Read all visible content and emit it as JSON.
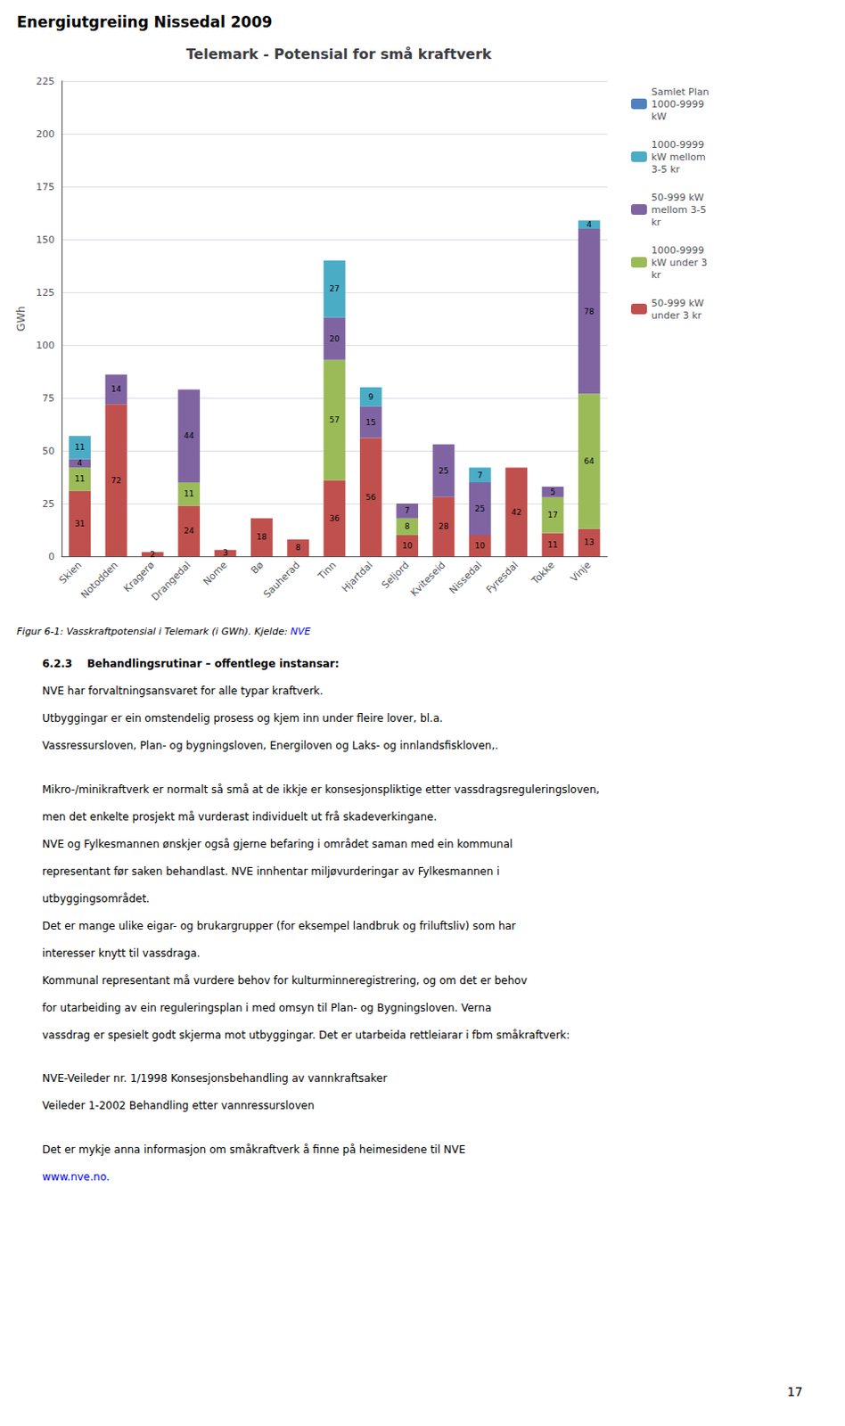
{
  "chart_data": {
    "type": "bar",
    "title": "Telemark - Potensial for små kraftverk",
    "ylabel": "GWh",
    "categories": [
      "Skien",
      "Notodden",
      "Kragerø",
      "Drangedal",
      "Nome",
      "Bø",
      "Sauherad",
      "Tinn",
      "Hjartdal",
      "Seljord",
      "Kviteseid",
      "Nissedal",
      "Fyresdal",
      "Tokke",
      "Vinje"
    ],
    "series": [
      {
        "name": "50-999 kW\nunder 3 kr",
        "color": "#c0504d",
        "values": [
          31,
          72,
          2,
          24,
          3,
          18,
          8,
          36,
          56,
          10,
          28,
          10,
          42,
          11,
          13
        ]
      },
      {
        "name": "1000-9999\nkW under 3\nkr",
        "color": "#9bbb59",
        "values": [
          11,
          0,
          0,
          11,
          0,
          0,
          0,
          57,
          0,
          8,
          0,
          0,
          0,
          17,
          64
        ]
      },
      {
        "name": "50-999 kW\nmellom 3-5\nkr",
        "color": "#8064a2",
        "values": [
          4,
          14,
          0,
          44,
          0,
          0,
          0,
          20,
          15,
          7,
          25,
          25,
          0,
          5,
          78
        ]
      },
      {
        "name": "1000-9999\nkW mellom\n3-5 kr",
        "color": "#4bacc6",
        "values": [
          11,
          0,
          0,
          0,
          0,
          0,
          0,
          27,
          9,
          0,
          0,
          7,
          0,
          0,
          4
        ]
      },
      {
        "name": "Samlet Plan\n1000-9999\nkW",
        "color": "#4f81bd",
        "values": [
          0,
          0,
          0,
          0,
          0,
          0,
          0,
          0,
          0,
          0,
          0,
          0,
          0,
          0,
          0
        ]
      }
    ],
    "stacked": true,
    "data_labels": true,
    "ylim": [
      0,
      225
    ],
    "yticks": [
      0,
      25,
      50,
      75,
      100,
      125,
      150,
      175,
      200,
      225
    ],
    "grid": true,
    "legend": "right",
    "annotations": {
      "header": "Energiutgreiing Nissedal 2009",
      "caption": [
        "Figur 6-1: Vasskraftpotensial i Telemark (i GWh). Kjelde: ",
        "NVE"
      ],
      "body": [
        [
          "6.2.3    Behandlingsrutinar – offentlege instansar:",
          "NVE har forvaltningsansvaret for alle typar kraftverk.",
          "Utbyggingar er ein omstendelig prosess og kjem inn under fleire lover, bl.a.",
          "Vassressursloven, Plan- og bygningsloven, Energiloven og Laks- og innlandsfiskloven,."
        ],
        [
          "Mikro-/minikraftverk er normalt så små at de ikkje er konsesjonspliktige etter vassdragsreguleringsloven,",
          "men det enkelte prosjekt må vurderast individuelt ut frå skadeverkingane.",
          "NVE og Fylkesmannen ønskjer også gjerne befaring i området saman med ein kommunal",
          "representant før saken behandlast. NVE innhentar miljøvurderingar av Fylkesmannen i",
          "utbyggingsområdet.",
          "Det er mange ulike eigar- og brukargrupper (for eksempel landbruk og friluftsliv) som har",
          "interesser knytt til vassdraga.",
          "Kommunal representant må vurdere behov for kulturminneregistrering, og om det er behov",
          "for utarbeiding av ein reguleringsplan i med omsyn til Plan- og Bygningsloven. Verna",
          "vassdrag er spesielt godt skjerma mot utbyggingar. Det er utarbeida rettleiarar i fbm småkraftverk:"
        ],
        [
          "NVE-Veileder nr. 1/1998 Konsesjonsbehandling av vannkraftsaker",
          "Veileder 1-2002 Behandling etter vannressursloven"
        ],
        [
          "Det er mykje anna informasjon om småkraftverk å finne på heimesidene til NVE",
          "www.nve.no."
        ]
      ],
      "page_number": "17"
    }
  }
}
